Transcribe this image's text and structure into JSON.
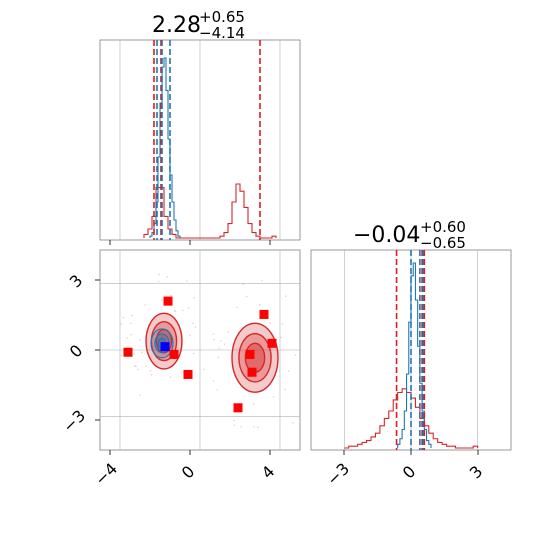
{
  "chart_data": [
    {
      "type": "histogram",
      "panel": "top-left",
      "title": {
        "value": "2.28",
        "upper": "+0.65",
        "lower": "−4.14"
      },
      "xlim": [
        -5,
        5
      ],
      "grid": true,
      "blue_lines": [
        -2.15,
        -1.9,
        -1.5
      ],
      "red_lines": [
        -2.3,
        -1.95,
        3.0
      ],
      "blue_hist": {
        "x0": -2.5,
        "bin": 0.1,
        "counts": [
          0.01,
          0.03,
          0.08,
          0.2,
          0.45,
          0.75,
          0.95,
          1.0,
          0.82,
          0.55,
          0.35,
          0.2,
          0.1,
          0.04,
          0.01
        ]
      },
      "red_hist": {
        "x0": -2.8,
        "bin": 0.2,
        "counts": [
          0.02,
          0.05,
          0.12,
          0.28,
          0.28,
          0.12,
          0.05,
          0.02,
          0,
          0,
          0,
          0,
          0,
          0,
          0,
          0,
          0,
          0,
          0,
          0.01,
          0.03,
          0.08,
          0.2,
          0.3,
          0.26,
          0.17,
          0.08,
          0.03,
          0.01,
          0,
          0,
          0,
          0.01
        ]
      }
    },
    {
      "type": "scatter",
      "panel": "bottom-left",
      "xlim": [
        -5,
        5
      ],
      "ylim": [
        -4.5,
        4.5
      ],
      "xticks": [
        "−4",
        "0",
        "4"
      ],
      "yticks": [
        "3",
        "0",
        "−3"
      ],
      "xtick_values": [
        -4,
        0,
        4
      ],
      "ytick_values": [
        3,
        0,
        -3
      ],
      "grid": true,
      "red_contours": [
        {
          "cx": -1.8,
          "cy": 0.4,
          "rx": 0.9,
          "ry": 1.25
        },
        {
          "cx": 2.75,
          "cy": -0.35,
          "rx": 1.15,
          "ry": 1.55
        }
      ],
      "blue_contour": {
        "cx": -1.9,
        "cy": 0.3,
        "rx": 0.55,
        "ry": 0.65
      },
      "red_points": [
        [
          -1.6,
          2.2
        ],
        [
          3.2,
          1.6
        ],
        [
          -3.6,
          -0.1
        ],
        [
          -1.3,
          -0.2
        ],
        [
          3.6,
          0.3
        ],
        [
          2.5,
          -0.2
        ],
        [
          -0.6,
          -1.1
        ],
        [
          2.6,
          -1.0
        ],
        [
          1.9,
          -2.6
        ]
      ],
      "blue_points": [
        [
          -1.75,
          0.15
        ]
      ]
    },
    {
      "type": "histogram",
      "panel": "bottom-right",
      "title": {
        "value": "−0.04",
        "upper": "+0.60",
        "lower": "−0.65"
      },
      "xlim": [
        -4.5,
        4.5
      ],
      "xticks": [
        "−3",
        "0",
        "3"
      ],
      "xtick_values": [
        -3,
        0,
        3
      ],
      "grid": true,
      "blue_lines": [
        0.0,
        0.4,
        0.55
      ],
      "red_lines": [
        -0.65,
        0.5,
        0.6
      ],
      "blue_hist": {
        "x0": -0.6,
        "bin": 0.1,
        "counts": [
          0.02,
          0.05,
          0.1,
          0.2,
          0.4,
          0.68,
          0.93,
          1.0,
          0.8,
          0.55,
          0.35,
          0.2,
          0.1,
          0.04,
          0.02
        ]
      },
      "red_hist": {
        "x0": -3.0,
        "bin": 0.2,
        "counts": [
          0,
          0.01,
          0.01,
          0.02,
          0.03,
          0.04,
          0.06,
          0.08,
          0.12,
          0.16,
          0.2,
          0.26,
          0.3,
          0.32,
          0.3,
          0.27,
          0.22,
          0.16,
          0.12,
          0.08,
          0.05,
          0.03,
          0.02,
          0.01,
          0.01,
          0,
          0,
          0,
          0,
          0.01
        ]
      }
    }
  ],
  "colors": {
    "red": "#d62728",
    "red_fill": "#f4a6a8",
    "blue": "#1f77b4",
    "marker_red": "#ff0000",
    "marker_blue": "#0000ff",
    "grid": "#b0b0b0",
    "axes": "#808080"
  }
}
